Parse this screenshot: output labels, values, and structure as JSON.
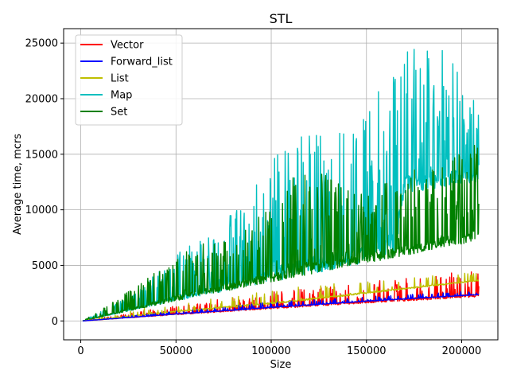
{
  "chart_data": {
    "type": "line",
    "title": "STL",
    "xlabel": "Size",
    "ylabel": "Average time, mcrs",
    "xlim": [
      -9000,
      219000
    ],
    "ylim": [
      -1700,
      26300
    ],
    "xticks": [
      0,
      50000,
      100000,
      150000,
      200000
    ],
    "yticks": [
      0,
      5000,
      10000,
      15000,
      20000,
      25000
    ],
    "grid": true,
    "legend_position": "top-left",
    "colors": {
      "Vector": "#ff0000",
      "Forward_list": "#0000ff",
      "List": "#bfbf00",
      "Map": "#00bfbf",
      "Set": "#008000"
    },
    "draw_order": [
      "Map",
      "Set",
      "Vector",
      "List",
      "Forward_list"
    ],
    "x_start": 1000,
    "x_end": 209000,
    "series": [
      {
        "name": "Vector",
        "base": [
          [
            1000,
            0
          ],
          [
            50000,
            550
          ],
          [
            100000,
            1080
          ],
          [
            150000,
            1600
          ],
          [
            209000,
            2150
          ]
        ],
        "top": [
          [
            1000,
            0
          ],
          [
            50000,
            1400
          ],
          [
            100000,
            2600
          ],
          [
            150000,
            3500
          ],
          [
            190000,
            4300
          ],
          [
            209000,
            4700
          ]
        ],
        "spike_prob": 0.25,
        "spike_scale": 0.75
      },
      {
        "name": "Forward_list",
        "base": [
          [
            1000,
            0
          ],
          [
            50000,
            600
          ],
          [
            100000,
            1180
          ],
          [
            150000,
            1750
          ],
          [
            209000,
            2350
          ]
        ],
        "top": [
          [
            1000,
            0
          ],
          [
            50000,
            900
          ],
          [
            100000,
            1700
          ],
          [
            150000,
            2200
          ],
          [
            209000,
            2700
          ]
        ],
        "spike_prob": 0.2,
        "spike_scale": 0.7
      },
      {
        "name": "List",
        "base": [
          [
            1000,
            0
          ],
          [
            50000,
            800
          ],
          [
            100000,
            1500
          ],
          [
            150000,
            2450
          ],
          [
            209000,
            3600
          ]
        ],
        "top": [
          [
            1000,
            0
          ],
          [
            50000,
            1700
          ],
          [
            100000,
            2900
          ],
          [
            150000,
            3600
          ],
          [
            209000,
            4400
          ]
        ],
        "spike_prob": 0.08,
        "spike_scale": 0.75
      },
      {
        "name": "Map",
        "base": [
          [
            1000,
            0
          ],
          [
            50000,
            1800
          ],
          [
            100000,
            3500
          ],
          [
            150000,
            5200
          ],
          [
            165000,
            5900
          ],
          [
            170000,
            11500
          ],
          [
            209000,
            12500
          ]
        ],
        "top": [
          [
            1000,
            0
          ],
          [
            30000,
            2600
          ],
          [
            50000,
            6200
          ],
          [
            70000,
            7800
          ],
          [
            100000,
            14700
          ],
          [
            115000,
            16500
          ],
          [
            150000,
            19500
          ],
          [
            170000,
            24500
          ],
          [
            195000,
            24500
          ],
          [
            209000,
            19000
          ]
        ],
        "spike_prob": 0.3,
        "spike_scale": 0.65
      },
      {
        "name": "Set",
        "base": [
          [
            1000,
            0
          ],
          [
            50000,
            1800
          ],
          [
            100000,
            3500
          ],
          [
            150000,
            5200
          ],
          [
            209000,
            7200
          ]
        ],
        "top": [
          [
            1000,
            0
          ],
          [
            30000,
            3200
          ],
          [
            50000,
            6000
          ],
          [
            80000,
            8000
          ],
          [
            100000,
            10500
          ],
          [
            115000,
            14600
          ],
          [
            140000,
            12000
          ],
          [
            165000,
            12800
          ],
          [
            209000,
            16200
          ]
        ],
        "spike_prob": 0.3,
        "spike_scale": 0.6
      }
    ]
  }
}
